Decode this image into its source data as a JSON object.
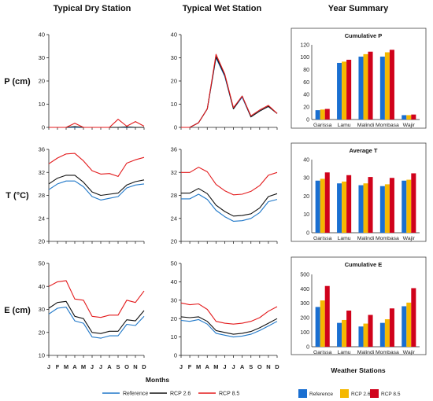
{
  "headers": {
    "dry": "Typical Dry Station",
    "wet": "Typical Wet Station",
    "summary": "Year Summary"
  },
  "row_labels": [
    "P (cm)",
    "T (°C)",
    "E (cm)"
  ],
  "months_label": "Months",
  "stations_label": "Weather Stations",
  "line_legend": [
    {
      "name": "Reference",
      "color": "#1f77c8"
    },
    {
      "name": "RCP 2.6",
      "color": "#111111"
    },
    {
      "name": "RCP 8.5",
      "color": "#e31a1c"
    }
  ],
  "bar_legend": [
    {
      "name": "Reference",
      "color": "#1a6fd1"
    },
    {
      "name": "RCP 2.6",
      "color": "#f5b800"
    },
    {
      "name": "RCP 8.5",
      "color": "#d0021b"
    }
  ],
  "chart_data": [
    {
      "type": "line",
      "column": "dry",
      "row": "P",
      "x": [
        "J",
        "F",
        "M",
        "A",
        "M",
        "J",
        "J",
        "A",
        "S",
        "O",
        "N",
        "D"
      ],
      "ylim": [
        0,
        40
      ],
      "yticks": [
        0,
        10,
        20,
        30,
        40
      ],
      "ylabel": "P (cm)",
      "series": [
        {
          "name": "Reference",
          "values": [
            0,
            0,
            0,
            0,
            0,
            0,
            0,
            0,
            0,
            0,
            0,
            0
          ]
        },
        {
          "name": "RCP 2.6",
          "values": [
            0,
            0,
            0,
            0.3,
            0,
            0,
            0,
            0,
            0,
            0.2,
            0,
            0
          ]
        },
        {
          "name": "RCP 8.5",
          "values": [
            0,
            0,
            0,
            1.8,
            0,
            0,
            0,
            0,
            3.5,
            0.5,
            2.5,
            0.5
          ]
        }
      ]
    },
    {
      "type": "line",
      "column": "wet",
      "row": "P",
      "x": [
        "J",
        "F",
        "M",
        "A",
        "M",
        "J",
        "J",
        "A",
        "S",
        "O",
        "N",
        "D"
      ],
      "ylim": [
        0,
        40
      ],
      "yticks": [
        0,
        10,
        20,
        30,
        40
      ],
      "series": [
        {
          "name": "Reference",
          "values": [
            0,
            0,
            2,
            8,
            30,
            22,
            8,
            13,
            4.5,
            7,
            9,
            6
          ]
        },
        {
          "name": "RCP 2.6",
          "values": [
            0,
            0,
            2,
            8,
            30.5,
            22.5,
            8,
            13.5,
            4.5,
            7,
            9,
            6
          ]
        },
        {
          "name": "RCP 8.5",
          "values": [
            0,
            0,
            2,
            8,
            31.5,
            23,
            8.5,
            13.5,
            5,
            7.5,
            9.5,
            6
          ]
        }
      ]
    },
    {
      "type": "bar",
      "column": "summary",
      "row": "P",
      "title": "Cumulative P",
      "categories": [
        "Garissa",
        "Lamu",
        "Malindi",
        "Mombasa",
        "Wajir"
      ],
      "ylim": [
        0,
        120
      ],
      "yticks": [
        0,
        20,
        40,
        60,
        80,
        100,
        120
      ],
      "series": [
        {
          "name": "Reference",
          "values": [
            15,
            91,
            101,
            101,
            7
          ]
        },
        {
          "name": "RCP 2.6",
          "values": [
            16,
            93,
            105,
            108,
            7
          ]
        },
        {
          "name": "RCP 8.5",
          "values": [
            17,
            96,
            109,
            112,
            8
          ]
        }
      ]
    },
    {
      "type": "line",
      "column": "dry",
      "row": "T",
      "x": [
        "J",
        "F",
        "M",
        "A",
        "M",
        "J",
        "J",
        "A",
        "S",
        "O",
        "N",
        "D"
      ],
      "ylim": [
        20,
        36
      ],
      "yticks": [
        20,
        24,
        28,
        32,
        36
      ],
      "ylabel": "T (°C)",
      "series": [
        {
          "name": "Reference",
          "values": [
            29,
            30,
            30.5,
            30.5,
            29.5,
            27.8,
            27.2,
            27.5,
            27.8,
            29.3,
            29.8,
            30.0
          ]
        },
        {
          "name": "RCP 2.6",
          "values": [
            30,
            31,
            31.5,
            31.5,
            30.3,
            28.6,
            28.0,
            28.2,
            28.4,
            29.8,
            30.4,
            30.7
          ]
        },
        {
          "name": "RCP 8.5",
          "values": [
            33.5,
            34.5,
            35.2,
            35.3,
            34.0,
            32.3,
            31.7,
            31.8,
            31.3,
            33.6,
            34.2,
            34.6
          ]
        }
      ]
    },
    {
      "type": "line",
      "column": "wet",
      "row": "T",
      "x": [
        "J",
        "F",
        "M",
        "A",
        "M",
        "J",
        "J",
        "A",
        "S",
        "O",
        "N",
        "D"
      ],
      "ylim": [
        20,
        36
      ],
      "yticks": [
        20,
        24,
        28,
        32,
        36
      ],
      "series": [
        {
          "name": "Reference",
          "values": [
            27.4,
            27.4,
            28.2,
            27.3,
            25.4,
            24.3,
            23.5,
            23.6,
            24.0,
            25.0,
            26.9,
            27.3
          ]
        },
        {
          "name": "RCP 2.6",
          "values": [
            28.4,
            28.4,
            29.2,
            28.3,
            26.3,
            25.2,
            24.4,
            24.5,
            24.8,
            25.8,
            27.8,
            28.3
          ]
        },
        {
          "name": "RCP 8.5",
          "values": [
            32.0,
            32.0,
            32.9,
            32.1,
            29.9,
            28.8,
            28.1,
            28.2,
            28.7,
            29.7,
            31.5,
            32.0
          ]
        }
      ]
    },
    {
      "type": "bar",
      "column": "summary",
      "row": "T",
      "title": "Average T",
      "categories": [
        "Garissa",
        "Lamu",
        "Malindi",
        "Mombasa",
        "Wajir"
      ],
      "ylim": [
        0,
        40
      ],
      "yticks": [
        0,
        10,
        20,
        30,
        40
      ],
      "series": [
        {
          "name": "Reference",
          "values": [
            28.5,
            27.0,
            26.0,
            25.5,
            28.5
          ]
        },
        {
          "name": "RCP 2.6",
          "values": [
            29.5,
            28.0,
            27.0,
            26.5,
            29.0
          ]
        },
        {
          "name": "RCP 8.5",
          "values": [
            33.0,
            31.5,
            30.5,
            30.0,
            32.5
          ]
        }
      ]
    },
    {
      "type": "line",
      "column": "dry",
      "row": "E",
      "x": [
        "J",
        "F",
        "M",
        "A",
        "M",
        "J",
        "J",
        "A",
        "S",
        "O",
        "N",
        "D"
      ],
      "ylim": [
        10,
        50
      ],
      "yticks": [
        10,
        20,
        30,
        40,
        50
      ],
      "ylabel": "E (cm)",
      "series": [
        {
          "name": "Reference",
          "values": [
            28,
            30.5,
            31,
            25,
            24,
            18,
            17.5,
            18.5,
            18.5,
            23.5,
            23,
            27
          ]
        },
        {
          "name": "RCP 2.6",
          "values": [
            30.5,
            33,
            33.5,
            27,
            26,
            20,
            19.5,
            20.5,
            20.5,
            25.5,
            25,
            29.5
          ]
        },
        {
          "name": "RCP 8.5",
          "values": [
            40,
            42,
            42.5,
            34.5,
            34,
            27,
            26.5,
            27.5,
            27.5,
            34,
            33,
            38
          ]
        }
      ]
    },
    {
      "type": "line",
      "column": "wet",
      "row": "E",
      "x": [
        "J",
        "F",
        "M",
        "A",
        "M",
        "J",
        "J",
        "A",
        "S",
        "O",
        "N",
        "D"
      ],
      "ylim": [
        0,
        50
      ],
      "yticks": [
        0,
        10,
        20,
        30,
        40,
        50
      ],
      "series": [
        {
          "name": "Reference",
          "values": [
            19,
            18.5,
            19.5,
            17,
            12,
            11,
            10,
            10.5,
            11.5,
            13.5,
            16,
            18.5
          ]
        },
        {
          "name": "RCP 2.6",
          "values": [
            21,
            20.5,
            21,
            18.5,
            13.5,
            12.5,
            11.5,
            12,
            13,
            15,
            17.5,
            20
          ]
        },
        {
          "name": "RCP 8.5",
          "values": [
            28.5,
            27.5,
            28,
            25,
            18.5,
            17.5,
            17,
            17.5,
            18.5,
            20.5,
            24,
            26.5
          ]
        }
      ]
    },
    {
      "type": "bar",
      "column": "summary",
      "row": "E",
      "title": "Cumulative E",
      "categories": [
        "Garissa",
        "Lamu",
        "Malindi",
        "Mombasa",
        "Wajir"
      ],
      "ylim": [
        0,
        500
      ],
      "yticks": [
        0,
        100,
        200,
        300,
        400,
        500
      ],
      "series": [
        {
          "name": "Reference",
          "values": [
            275,
            165,
            140,
            165,
            280
          ]
        },
        {
          "name": "RCP 2.6",
          "values": [
            320,
            185,
            160,
            190,
            305
          ]
        },
        {
          "name": "RCP 8.5",
          "values": [
            420,
            250,
            220,
            265,
            405
          ]
        }
      ]
    }
  ]
}
